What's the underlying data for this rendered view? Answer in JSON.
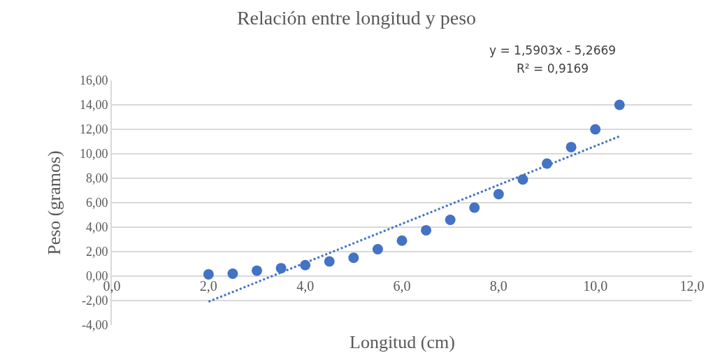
{
  "chart_data": {
    "type": "scatter",
    "title": "Relación entre longitud y peso",
    "xlabel": "Longitud (cm)",
    "ylabel": "Peso (gramos)",
    "series": [
      {
        "color": "#4472c4",
        "marker": "circle",
        "x": [
          2.0,
          2.5,
          3.0,
          3.5,
          4.0,
          4.5,
          5.0,
          5.5,
          6.0,
          6.5,
          7.0,
          7.5,
          8.0,
          8.5,
          9.0,
          9.5,
          10.0,
          10.5
        ],
        "values": [
          0.15,
          0.2,
          0.45,
          0.65,
          0.9,
          1.2,
          1.5,
          2.2,
          2.9,
          3.75,
          4.6,
          5.6,
          6.7,
          7.9,
          9.2,
          10.55,
          12.0,
          14.0
        ]
      },
      {
        "type": "line",
        "color": "#4472c4",
        "line_style": "dotted",
        "x": [
          2.0,
          10.5
        ],
        "values": [
          -2.09,
          11.43
        ]
      }
    ],
    "annotations": [
      "y = 1,5903x - 5,2669",
      "R² = 0,9169"
    ],
    "xlim": [
      0,
      12
    ],
    "ylim": [
      -4,
      16
    ],
    "xticks": [
      {
        "value": 0,
        "label": "0,0"
      },
      {
        "value": 2,
        "label": "2,0"
      },
      {
        "value": 4,
        "label": "4,0"
      },
      {
        "value": 6,
        "label": "6,0"
      },
      {
        "value": 8,
        "label": "8,0"
      },
      {
        "value": 10,
        "label": "10,0"
      },
      {
        "value": 12,
        "label": "12,0"
      }
    ],
    "yticks": [
      {
        "value": -4,
        "label": "-4,00"
      },
      {
        "value": -2,
        "label": "-2,00"
      },
      {
        "value": 0,
        "label": "0,00"
      },
      {
        "value": 2,
        "label": "2,00"
      },
      {
        "value": 4,
        "label": "4,00"
      },
      {
        "value": 6,
        "label": "6,00"
      },
      {
        "value": 8,
        "label": "8,00"
      },
      {
        "value": 10,
        "label": "10,00"
      },
      {
        "value": 12,
        "label": "12,00"
      },
      {
        "value": 14,
        "label": "14,00"
      },
      {
        "value": 16,
        "label": "16,00"
      }
    ],
    "grid": "y"
  }
}
